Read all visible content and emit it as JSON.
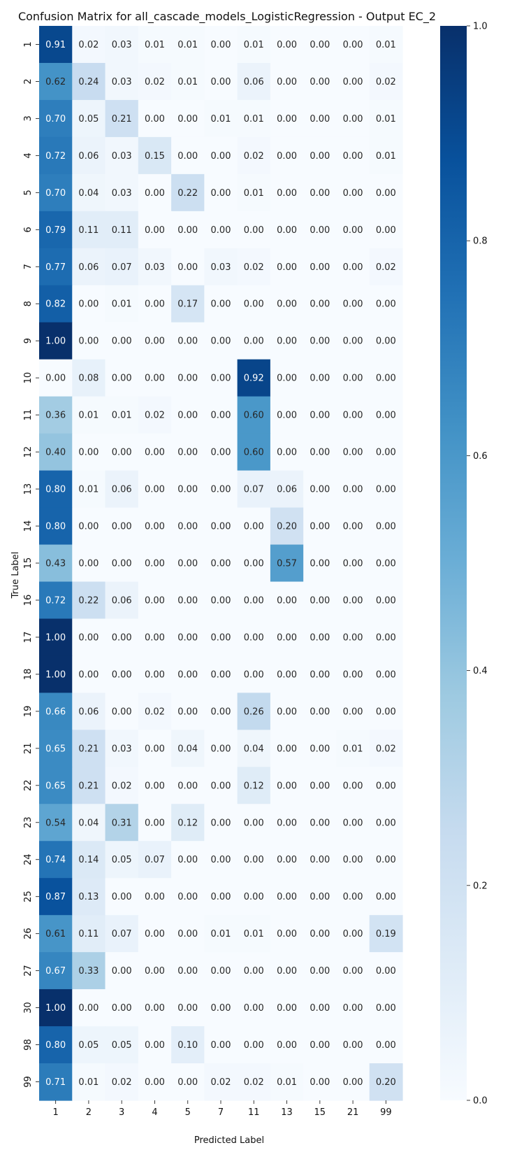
{
  "chart_data": {
    "type": "heatmap",
    "title": "Confusion Matrix for all_cascade_models_LogisticRegression - Output EC_2",
    "xlabel": "Predicted Label",
    "ylabel": "True Label",
    "x_categories": [
      "1",
      "2",
      "3",
      "4",
      "5",
      "7",
      "11",
      "13",
      "15",
      "21",
      "99"
    ],
    "y_categories": [
      "1",
      "2",
      "3",
      "4",
      "5",
      "6",
      "7",
      "8",
      "9",
      "10",
      "11",
      "12",
      "13",
      "14",
      "15",
      "16",
      "17",
      "18",
      "19",
      "21",
      "22",
      "23",
      "24",
      "25",
      "26",
      "27",
      "30",
      "98",
      "99"
    ],
    "values": [
      [
        0.91,
        0.02,
        0.03,
        0.01,
        0.01,
        0.0,
        0.01,
        0.0,
        0.0,
        0.0,
        0.01
      ],
      [
        0.62,
        0.24,
        0.03,
        0.02,
        0.01,
        0.0,
        0.06,
        0.0,
        0.0,
        0.0,
        0.02
      ],
      [
        0.7,
        0.05,
        0.21,
        0.0,
        0.0,
        0.01,
        0.01,
        0.0,
        0.0,
        0.0,
        0.01
      ],
      [
        0.72,
        0.06,
        0.03,
        0.15,
        0.0,
        0.0,
        0.02,
        0.0,
        0.0,
        0.0,
        0.01
      ],
      [
        0.7,
        0.04,
        0.03,
        0.0,
        0.22,
        0.0,
        0.01,
        0.0,
        0.0,
        0.0,
        0.0
      ],
      [
        0.79,
        0.11,
        0.11,
        0.0,
        0.0,
        0.0,
        0.0,
        0.0,
        0.0,
        0.0,
        0.0
      ],
      [
        0.77,
        0.06,
        0.07,
        0.03,
        0.0,
        0.03,
        0.02,
        0.0,
        0.0,
        0.0,
        0.02
      ],
      [
        0.82,
        0.0,
        0.01,
        0.0,
        0.17,
        0.0,
        0.0,
        0.0,
        0.0,
        0.0,
        0.0
      ],
      [
        1.0,
        0.0,
        0.0,
        0.0,
        0.0,
        0.0,
        0.0,
        0.0,
        0.0,
        0.0,
        0.0
      ],
      [
        0.0,
        0.08,
        0.0,
        0.0,
        0.0,
        0.0,
        0.92,
        0.0,
        0.0,
        0.0,
        0.0
      ],
      [
        0.36,
        0.01,
        0.01,
        0.02,
        0.0,
        0.0,
        0.6,
        0.0,
        0.0,
        0.0,
        0.0
      ],
      [
        0.4,
        0.0,
        0.0,
        0.0,
        0.0,
        0.0,
        0.6,
        0.0,
        0.0,
        0.0,
        0.0
      ],
      [
        0.8,
        0.01,
        0.06,
        0.0,
        0.0,
        0.0,
        0.07,
        0.06,
        0.0,
        0.0,
        0.0
      ],
      [
        0.8,
        0.0,
        0.0,
        0.0,
        0.0,
        0.0,
        0.0,
        0.2,
        0.0,
        0.0,
        0.0
      ],
      [
        0.43,
        0.0,
        0.0,
        0.0,
        0.0,
        0.0,
        0.0,
        0.57,
        0.0,
        0.0,
        0.0
      ],
      [
        0.72,
        0.22,
        0.06,
        0.0,
        0.0,
        0.0,
        0.0,
        0.0,
        0.0,
        0.0,
        0.0
      ],
      [
        1.0,
        0.0,
        0.0,
        0.0,
        0.0,
        0.0,
        0.0,
        0.0,
        0.0,
        0.0,
        0.0
      ],
      [
        1.0,
        0.0,
        0.0,
        0.0,
        0.0,
        0.0,
        0.0,
        0.0,
        0.0,
        0.0,
        0.0
      ],
      [
        0.66,
        0.06,
        0.0,
        0.02,
        0.0,
        0.0,
        0.26,
        0.0,
        0.0,
        0.0,
        0.0
      ],
      [
        0.65,
        0.21,
        0.03,
        0.0,
        0.04,
        0.0,
        0.04,
        0.0,
        0.0,
        0.01,
        0.02
      ],
      [
        0.65,
        0.21,
        0.02,
        0.0,
        0.0,
        0.0,
        0.12,
        0.0,
        0.0,
        0.0,
        0.0
      ],
      [
        0.54,
        0.04,
        0.31,
        0.0,
        0.12,
        0.0,
        0.0,
        0.0,
        0.0,
        0.0,
        0.0
      ],
      [
        0.74,
        0.14,
        0.05,
        0.07,
        0.0,
        0.0,
        0.0,
        0.0,
        0.0,
        0.0,
        0.0
      ],
      [
        0.87,
        0.13,
        0.0,
        0.0,
        0.0,
        0.0,
        0.0,
        0.0,
        0.0,
        0.0,
        0.0
      ],
      [
        0.61,
        0.11,
        0.07,
        0.0,
        0.0,
        0.01,
        0.01,
        0.0,
        0.0,
        0.0,
        0.19
      ],
      [
        0.67,
        0.33,
        0.0,
        0.0,
        0.0,
        0.0,
        0.0,
        0.0,
        0.0,
        0.0,
        0.0
      ],
      [
        1.0,
        0.0,
        0.0,
        0.0,
        0.0,
        0.0,
        0.0,
        0.0,
        0.0,
        0.0,
        0.0
      ],
      [
        0.8,
        0.05,
        0.05,
        0.0,
        0.1,
        0.0,
        0.0,
        0.0,
        0.0,
        0.0,
        0.0
      ],
      [
        0.71,
        0.01,
        0.02,
        0.0,
        0.0,
        0.02,
        0.02,
        0.01,
        0.0,
        0.0,
        0.2
      ]
    ],
    "value_format": "0.00",
    "colormap": "Blues",
    "color_range": [
      0.0,
      1.0
    ],
    "colorbar_ticks": [
      "0.0",
      "0.2",
      "0.4",
      "0.6",
      "0.8",
      "1.0"
    ],
    "colorbar_tick_values": [
      0.0,
      0.2,
      0.4,
      0.6,
      0.8,
      1.0
    ],
    "grid": false,
    "colorbar_placement": "right"
  }
}
